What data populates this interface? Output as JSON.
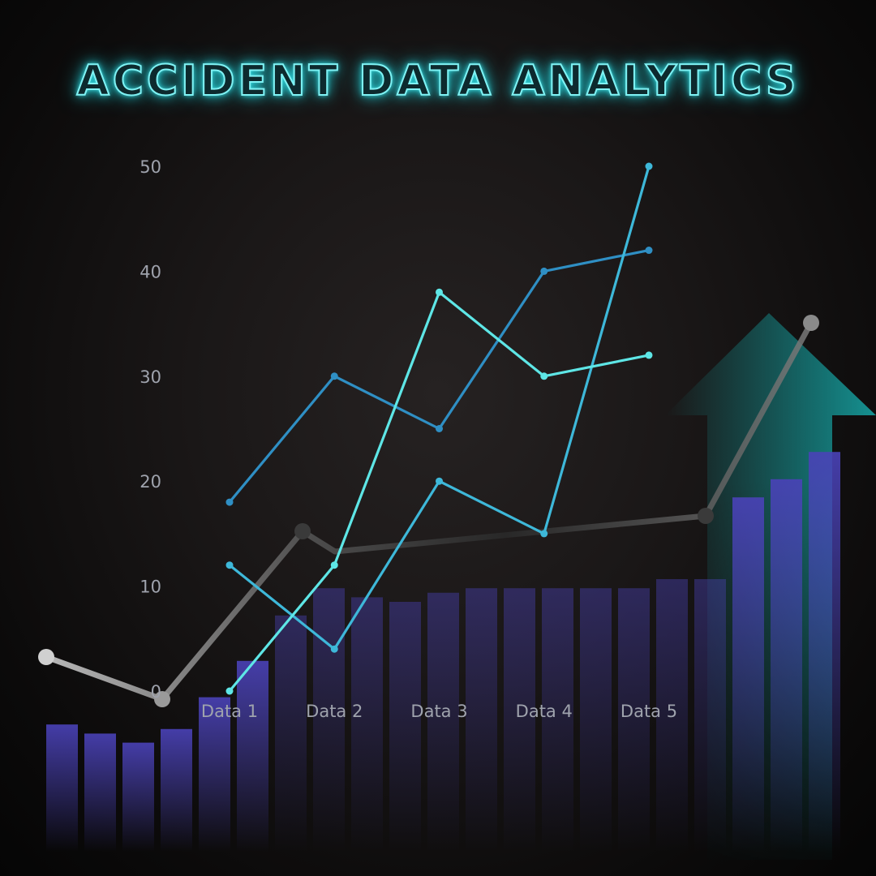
{
  "title": "ACCIDENT DATA ANALYTICS",
  "chart_data": {
    "type": "line",
    "categories": [
      "Data 1",
      "Data 2",
      "Data 3",
      "Data 4",
      "Data 5"
    ],
    "ylim": [
      0,
      50
    ],
    "yticks": [
      0,
      10,
      20,
      30,
      40,
      50
    ],
    "grid": false,
    "series": [
      {
        "values": [
          18,
          30,
          25,
          40,
          42
        ],
        "color": "#2f8fc4"
      },
      {
        "values": [
          12,
          4,
          20,
          15,
          50
        ],
        "color": "#3eb8d9"
      },
      {
        "values": [
          0,
          12,
          38,
          30,
          32
        ],
        "color": "#5ee6e6"
      }
    ]
  },
  "decor": {
    "bar_heights": [
      0.28,
      0.26,
      0.24,
      0.27,
      0.34,
      0.42,
      0.52,
      0.58,
      0.56,
      0.55,
      0.57,
      0.58,
      0.58,
      0.58,
      0.58,
      0.58,
      0.6,
      0.6,
      0.78,
      0.82,
      0.88
    ],
    "bar_color": "#4a42b8",
    "arrow_color": "#17a8a8",
    "trend_points": [
      0.33,
      0.24,
      0.66,
      0.7,
      0.2,
      0.84
    ]
  }
}
